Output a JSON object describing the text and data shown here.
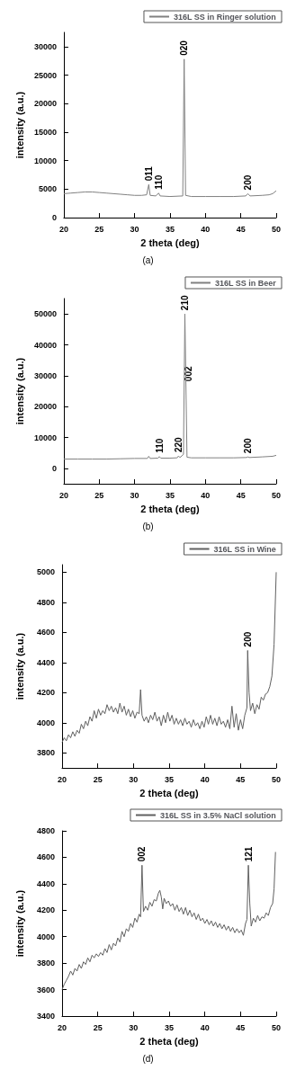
{
  "chart_data": [
    {
      "type": "line",
      "xlabel": "2 theta (deg)",
      "ylabel": "intensity (a.u.)",
      "xlim": [
        20,
        50
      ],
      "xticks": [
        20,
        25,
        30,
        35,
        40,
        45,
        50
      ],
      "ylim": [
        0,
        32500
      ],
      "yticks": [
        0,
        5000,
        10000,
        15000,
        20000,
        25000,
        30000
      ],
      "grid": false,
      "legend": "top right",
      "series": [
        {
          "name": "316L SS in Ringer solution",
          "color": "#808080",
          "x": [
            20,
            21,
            22,
            23,
            24,
            25,
            26,
            27,
            28,
            29,
            30,
            31,
            31.7,
            32,
            32.2,
            33,
            33.4,
            33.6,
            35,
            36.8,
            37,
            37.2,
            38,
            40,
            42,
            44,
            45.7,
            46,
            46.3,
            48,
            49,
            49.5,
            50
          ],
          "values": [
            4200,
            4300,
            4400,
            4500,
            4500,
            4400,
            4300,
            4200,
            4100,
            4000,
            3900,
            3900,
            4000,
            5800,
            3900,
            3800,
            4300,
            3800,
            3700,
            3800,
            27800,
            3900,
            3700,
            3700,
            3700,
            3700,
            3800,
            4200,
            3800,
            3900,
            4000,
            4200,
            4700
          ]
        }
      ],
      "annotations": [
        {
          "text": "011",
          "x": 32,
          "y": 5800
        },
        {
          "text": "110",
          "x": 33.4,
          "y": 4300
        },
        {
          "text": "020",
          "x": 37,
          "y": 27800
        },
        {
          "text": "200",
          "x": 46,
          "y": 4200
        },
        "(a)"
      ]
    },
    {
      "type": "line",
      "xlabel": "2 theta (deg)",
      "ylabel": "intensity (a.u.)",
      "xlim": [
        20,
        50
      ],
      "xticks": [
        20,
        25,
        30,
        35,
        40,
        45,
        50
      ],
      "ylim": [
        -5000,
        55000
      ],
      "yticks": [
        0,
        10000,
        20000,
        30000,
        40000,
        50000
      ],
      "grid": false,
      "legend": "top right",
      "series": [
        {
          "name": "316L SS in Beer",
          "color": "#808080",
          "x": [
            20,
            22,
            24,
            26,
            28,
            30,
            31.8,
            32,
            32.2,
            33.3,
            33.5,
            33.7,
            35,
            36,
            36.2,
            36.4,
            36.9,
            37.1,
            37.4,
            38,
            40,
            42,
            44,
            45.8,
            46,
            46.2,
            48,
            49.5,
            50
          ],
          "values": [
            3000,
            3000,
            3000,
            3000,
            3100,
            3200,
            3200,
            3900,
            3200,
            3300,
            3800,
            3300,
            3300,
            3400,
            4000,
            3500,
            4500,
            50000,
            3600,
            3400,
            3400,
            3400,
            3400,
            3500,
            3700,
            3500,
            3700,
            3900,
            4200
          ]
        }
      ],
      "annotations": [
        {
          "text": "110",
          "x": 33.5,
          "y": 3800
        },
        {
          "text": "220",
          "x": 36.2,
          "y": 4000
        },
        {
          "text": "210",
          "x": 37.1,
          "y": 50000
        },
        {
          "text": "002",
          "x": 37.6,
          "y": 27000
        },
        {
          "text": "200",
          "x": 46,
          "y": 3700
        },
        "(b)"
      ]
    },
    {
      "type": "line",
      "xlabel": "2 theta (deg)",
      "ylabel": "intensity (a.u.)",
      "xlim": [
        20,
        50
      ],
      "xticks": [
        20,
        25,
        30,
        35,
        40,
        45,
        50
      ],
      "ylim": [
        3700,
        5050
      ],
      "yticks": [
        3800,
        4000,
        4200,
        4400,
        4600,
        4800,
        5000
      ],
      "grid": false,
      "legend": "top right",
      "series": [
        {
          "name": "316L SS in Wine",
          "color": "#606060",
          "x": [
            20,
            20.3,
            20.6,
            20.9,
            21.2,
            21.5,
            21.8,
            22.1,
            22.4,
            22.7,
            23,
            23.3,
            23.6,
            23.9,
            24.2,
            24.5,
            24.8,
            25.1,
            25.4,
            25.7,
            26,
            26.3,
            26.6,
            26.9,
            27.2,
            27.5,
            27.8,
            28.1,
            28.4,
            28.7,
            29,
            29.3,
            29.6,
            29.9,
            30.2,
            30.5,
            30.8,
            31,
            31.2,
            31.5,
            31.8,
            32.1,
            32.4,
            32.7,
            33,
            33.3,
            33.6,
            33.9,
            34.2,
            34.5,
            34.8,
            35.1,
            35.4,
            35.7,
            36,
            36.3,
            36.6,
            36.9,
            37.2,
            37.5,
            37.8,
            38.1,
            38.4,
            38.7,
            39,
            39.3,
            39.6,
            39.9,
            40.2,
            40.5,
            40.8,
            41.1,
            41.4,
            41.7,
            42,
            42.3,
            42.6,
            42.9,
            43.2,
            43.5,
            43.8,
            44.1,
            44.4,
            44.7,
            45,
            45.3,
            45.6,
            45.9,
            46,
            46.2,
            46.4,
            46.7,
            47,
            47.3,
            47.6,
            47.9,
            48.2,
            48.5,
            48.8,
            49.1,
            49.4,
            49.7,
            50
          ],
          "values": [
            3870,
            3900,
            3880,
            3920,
            3900,
            3940,
            3910,
            3950,
            3930,
            3990,
            3960,
            4010,
            3980,
            4040,
            4010,
            4080,
            4030,
            4090,
            4050,
            4080,
            4060,
            4120,
            4080,
            4110,
            4070,
            4100,
            4060,
            4130,
            4070,
            4110,
            4050,
            4090,
            4040,
            4080,
            4030,
            4070,
            4060,
            4220,
            4050,
            4010,
            4040,
            4000,
            4050,
            4020,
            4070,
            4010,
            4040,
            3980,
            4050,
            4000,
            4070,
            4010,
            4050,
            3990,
            4030,
            3990,
            4020,
            3980,
            4030,
            3990,
            4010,
            3970,
            4020,
            3980,
            4000,
            3960,
            4010,
            3970,
            4040,
            3990,
            4050,
            3990,
            4030,
            3980,
            4040,
            3990,
            4010,
            3970,
            4020,
            3960,
            4110,
            3970,
            4060,
            3950,
            4020,
            3960,
            4050,
            4100,
            4480,
            4200,
            4080,
            4130,
            4060,
            4120,
            4090,
            4170,
            4150,
            4190,
            4200,
            4240,
            4310,
            4520,
            5000
          ]
        }
      ],
      "annotations": [
        {
          "text": "200",
          "x": 46,
          "y": 4480
        }
      ]
    },
    {
      "type": "line",
      "xlabel": "2 theta (deg)",
      "ylabel": "intensity (a.u.)",
      "xlim": [
        20,
        50
      ],
      "xticks": [
        20,
        25,
        30,
        35,
        40,
        45,
        50
      ],
      "ylim": [
        3400,
        4800
      ],
      "yticks": [
        3400,
        3600,
        3800,
        4000,
        4200,
        4400,
        4600,
        4800
      ],
      "grid": false,
      "legend": "top right",
      "series": [
        {
          "name": "316L SS in 3.5% NaCl solution",
          "color": "#606060",
          "x": [
            20,
            20.3,
            20.6,
            20.9,
            21.2,
            21.5,
            21.8,
            22.1,
            22.4,
            22.7,
            23,
            23.3,
            23.6,
            23.9,
            24.2,
            24.5,
            24.8,
            25.1,
            25.4,
            25.7,
            26,
            26.3,
            26.6,
            26.9,
            27.2,
            27.5,
            27.8,
            28.1,
            28.4,
            28.7,
            29,
            29.3,
            29.6,
            29.9,
            30.2,
            30.5,
            30.8,
            31,
            31.2,
            31.4,
            31.7,
            32,
            32.3,
            32.6,
            32.9,
            33.2,
            33.5,
            33.7,
            33.9,
            34.1,
            34.3,
            34.6,
            34.9,
            35.2,
            35.5,
            35.8,
            36.1,
            36.4,
            36.7,
            37,
            37.3,
            37.6,
            37.9,
            38.2,
            38.5,
            38.8,
            39.1,
            39.4,
            39.7,
            40,
            40.3,
            40.6,
            40.9,
            41.2,
            41.5,
            41.8,
            42.1,
            42.4,
            42.7,
            43,
            43.3,
            43.6,
            43.9,
            44.2,
            44.5,
            44.8,
            45.1,
            45.4,
            45.7,
            45.9,
            46.1,
            46.3,
            46.5,
            46.8,
            47.1,
            47.4,
            47.7,
            48,
            48.3,
            48.6,
            48.9,
            49.2,
            49.5,
            49.7,
            49.9
          ],
          "values": [
            3600,
            3640,
            3670,
            3700,
            3740,
            3710,
            3760,
            3740,
            3790,
            3760,
            3810,
            3790,
            3840,
            3810,
            3860,
            3840,
            3870,
            3850,
            3880,
            3860,
            3910,
            3880,
            3940,
            3900,
            3950,
            3930,
            3990,
            3960,
            4040,
            4000,
            4060,
            4040,
            4100,
            4070,
            4140,
            4110,
            4170,
            4150,
            4540,
            4190,
            4230,
            4200,
            4260,
            4230,
            4280,
            4270,
            4330,
            4350,
            4300,
            4210,
            4290,
            4250,
            4270,
            4230,
            4250,
            4200,
            4240,
            4190,
            4220,
            4170,
            4220,
            4160,
            4200,
            4150,
            4180,
            4130,
            4170,
            4120,
            4140,
            4100,
            4130,
            4090,
            4120,
            4080,
            4110,
            4070,
            4100,
            4060,
            4090,
            4050,
            4080,
            4040,
            4070,
            4030,
            4060,
            4030,
            4050,
            4010,
            4100,
            4130,
            4540,
            4250,
            4080,
            4140,
            4110,
            4160,
            4120,
            4150,
            4140,
            4180,
            4160,
            4220,
            4250,
            4360,
            4640
          ]
        }
      ],
      "annotations": [
        {
          "text": "002",
          "x": 31.2,
          "y": 4540
        },
        {
          "text": "121",
          "x": 46.1,
          "y": 4540
        },
        "(d)"
      ]
    }
  ]
}
